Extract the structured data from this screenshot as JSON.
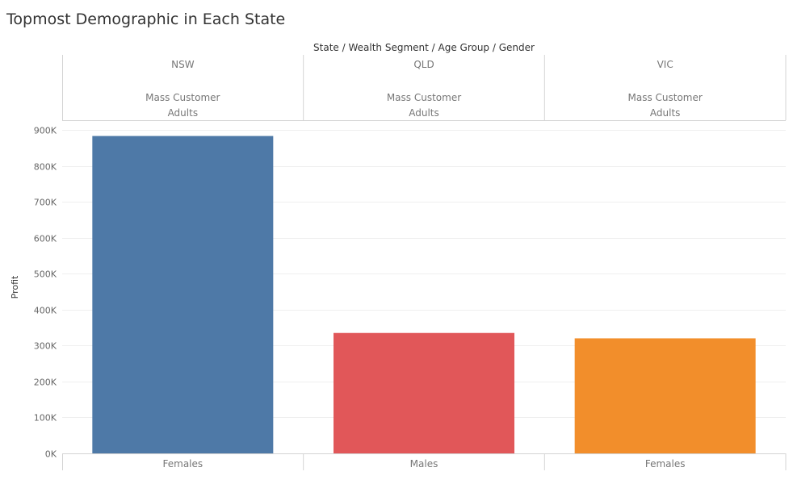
{
  "title": "Topmost Demographic in Each State",
  "header_label": "State / Wealth Segment / Age Group / Gender",
  "chart_data": {
    "type": "bar",
    "title": "Topmost Demographic in Each State",
    "ylabel": "Profit",
    "ylim": [
      0,
      900000
    ],
    "yticks": [
      "0K",
      "100K",
      "200K",
      "300K",
      "400K",
      "500K",
      "600K",
      "700K",
      "800K",
      "900K"
    ],
    "grid": true,
    "columns": [
      {
        "state": "NSW",
        "wealth_segment": "Mass Customer",
        "age_group": "Adults",
        "gender": "Females",
        "value": 883000,
        "color": "#4e79a7"
      },
      {
        "state": "QLD",
        "wealth_segment": "Mass Customer",
        "age_group": "Adults",
        "gender": "Males",
        "value": 335000,
        "color": "#e15759"
      },
      {
        "state": "VIC",
        "wealth_segment": "Mass Customer",
        "age_group": "Adults",
        "gender": "Females",
        "value": 320000,
        "color": "#f28e2b"
      }
    ]
  }
}
